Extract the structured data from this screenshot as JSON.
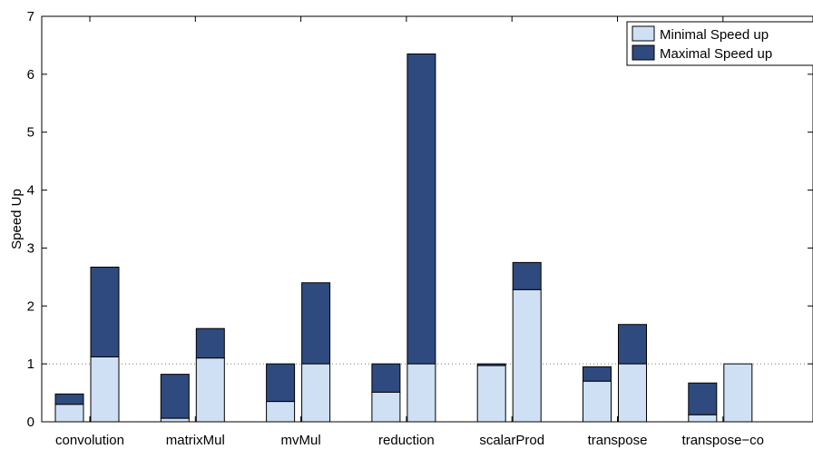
{
  "chart_data": {
    "type": "bar",
    "stacked": true,
    "ylabel": "Speed Up",
    "ylim": [
      0,
      7
    ],
    "yticks": [
      0,
      1,
      2,
      3,
      4,
      5,
      6,
      7
    ],
    "reference_line": 1,
    "legend_position": "top-right",
    "categories": [
      "convolution",
      "matrixMul",
      "mvMul",
      "reduction",
      "scalarProd",
      "transpose",
      "transpose−co"
    ],
    "bars_per_category": 2,
    "series": [
      {
        "name": "Minimal Speed up",
        "color": "#cfe0f5",
        "values": [
          [
            0.3,
            1.12
          ],
          [
            0.06,
            1.1
          ],
          [
            0.35,
            1.0
          ],
          [
            0.51,
            1.0
          ],
          [
            0.97,
            2.28
          ],
          [
            0.7,
            1.0
          ],
          [
            0.12,
            1.0
          ]
        ]
      },
      {
        "name": "Maximal Speed up",
        "color": "#2f4a7f",
        "values": [
          [
            0.48,
            2.67
          ],
          [
            0.82,
            1.61
          ],
          [
            1.0,
            2.4
          ],
          [
            1.0,
            6.35
          ],
          [
            1.0,
            2.75
          ],
          [
            0.95,
            1.68
          ],
          [
            0.67,
            1.0
          ]
        ]
      }
    ]
  }
}
